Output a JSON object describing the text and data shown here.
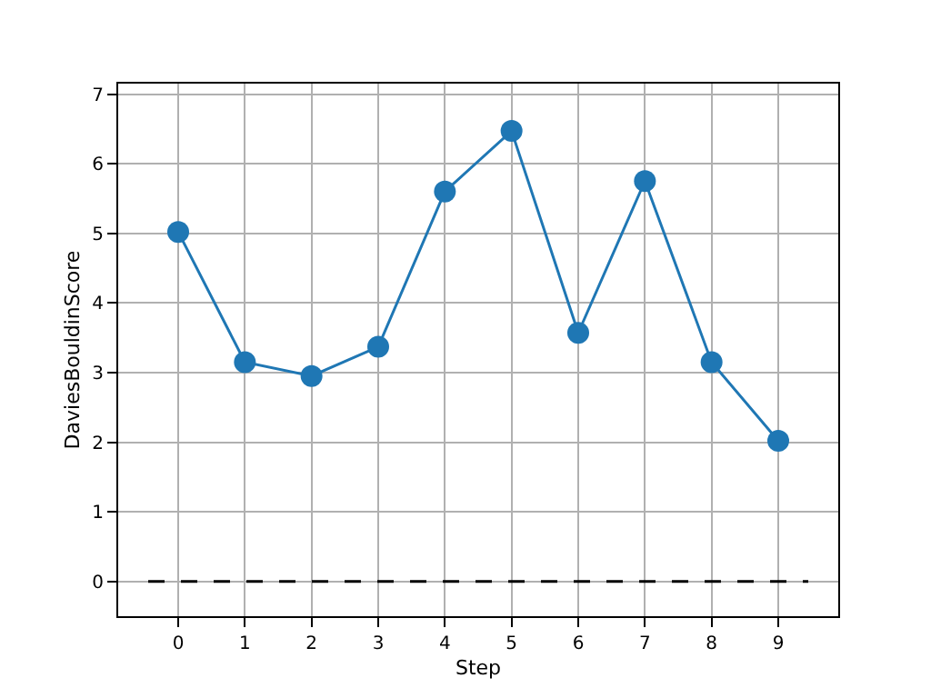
{
  "chart_data": {
    "type": "line",
    "xlabel": "Step",
    "ylabel": "DaviesBouldinScore",
    "x": [
      0,
      1,
      2,
      3,
      4,
      5,
      6,
      7,
      8,
      9
    ],
    "series": [
      {
        "color": "#1f77b4",
        "values": [
          5.02,
          3.15,
          2.95,
          3.37,
          5.6,
          6.47,
          3.57,
          5.75,
          3.15,
          2.02
        ],
        "marker": "circle",
        "line_style": "solid"
      },
      {
        "color": "#000000",
        "x": [
          -0.45,
          9.45
        ],
        "values": [
          0,
          0
        ],
        "marker": "none",
        "line_style": "dashed"
      }
    ],
    "xlim": [
      -0.9,
      9.9
    ],
    "xticks": [
      0,
      1,
      2,
      3,
      4,
      5,
      6,
      7,
      8,
      9
    ],
    "ylim": [
      -0.5,
      7.15
    ],
    "yticks": [
      0,
      1,
      2,
      3,
      4,
      5,
      6,
      7
    ],
    "grid": true
  }
}
